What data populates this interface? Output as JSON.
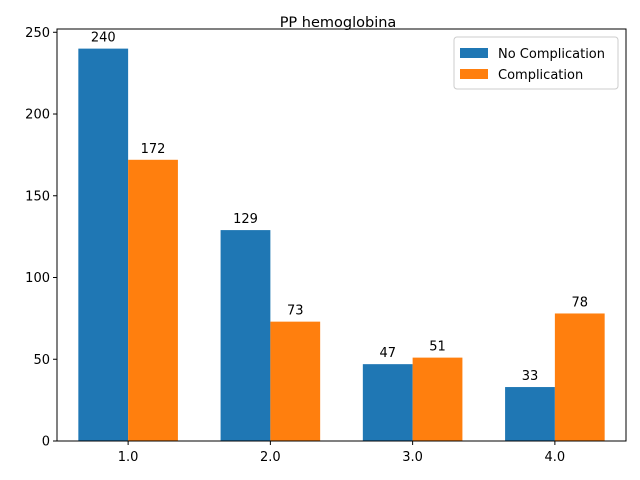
{
  "chart_data": {
    "type": "bar",
    "title": "PP hemoglobina",
    "xlabel": "",
    "ylabel": "",
    "categories": [
      "1.0",
      "2.0",
      "3.0",
      "4.0"
    ],
    "series": [
      {
        "name": "No Complication",
        "color": "#1f77b4",
        "values": [
          240,
          129,
          47,
          33
        ]
      },
      {
        "name": "Complication",
        "color": "#ff7f0e",
        "values": [
          172,
          73,
          51,
          78
        ]
      }
    ],
    "ylim": [
      0,
      252
    ],
    "yticks": [
      0,
      50,
      100,
      150,
      200,
      250
    ],
    "legend": "top-right",
    "grid": false
  }
}
